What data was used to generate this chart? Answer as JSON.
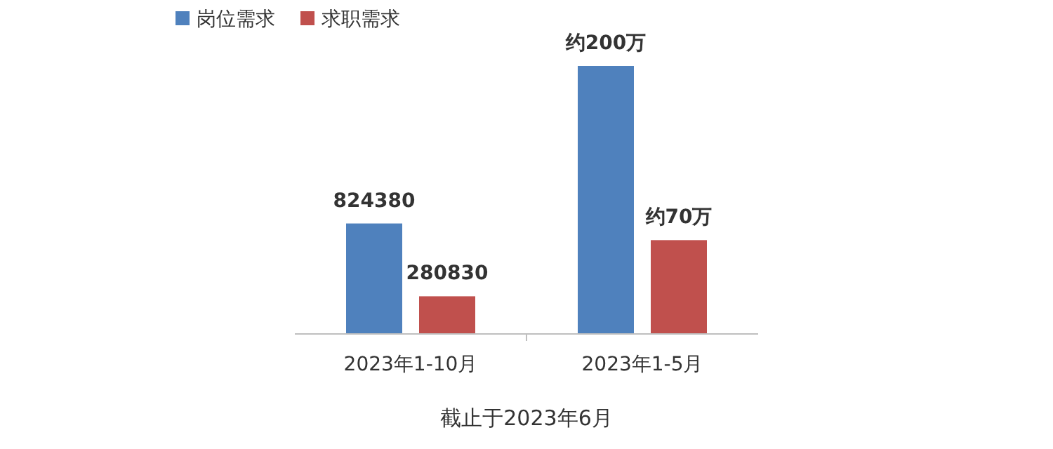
{
  "chart_data": {
    "type": "bar",
    "categories": [
      "2023年1-10月",
      "2023年1-5月"
    ],
    "series": [
      {
        "name": "岗位需求",
        "color": "#4f81bd",
        "values": [
          824380,
          2000000
        ],
        "value_labels": [
          "824380",
          "约200万"
        ]
      },
      {
        "name": "求职需求",
        "color": "#c0504d",
        "values": [
          280830,
          700000
        ],
        "value_labels": [
          "280830",
          "约70万"
        ]
      }
    ],
    "legend": "top left",
    "annotations": [
      "截止于2023年6月"
    ]
  }
}
